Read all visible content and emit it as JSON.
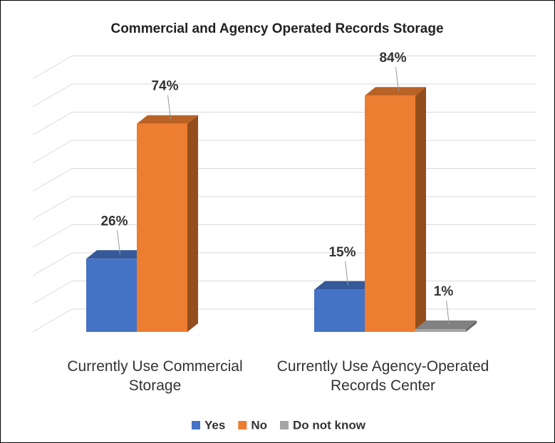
{
  "chart_data": {
    "type": "bar3d",
    "title": "Commercial and Agency Operated Records Storage",
    "categories": [
      "Currently Use Commercial Storage",
      "Currently Use Agency-Operated Records Center"
    ],
    "series": [
      {
        "name": "Yes",
        "color": "#4472c4",
        "values": [
          26,
          15
        ],
        "value_labels": [
          "26%",
          "15%"
        ]
      },
      {
        "name": "No",
        "color": "#ed7d31",
        "values": [
          74,
          84
        ],
        "value_labels": [
          "74%",
          "84%"
        ]
      },
      {
        "name": "Do not know",
        "color": "#a5a5a5",
        "values": [
          null,
          1
        ],
        "value_labels": [
          null,
          "1%"
        ]
      }
    ],
    "ylim": [
      0,
      90
    ],
    "yticks": [
      0,
      10,
      20,
      30,
      40,
      50,
      60,
      70,
      80,
      90
    ],
    "grid": true,
    "legend": "bottom"
  }
}
